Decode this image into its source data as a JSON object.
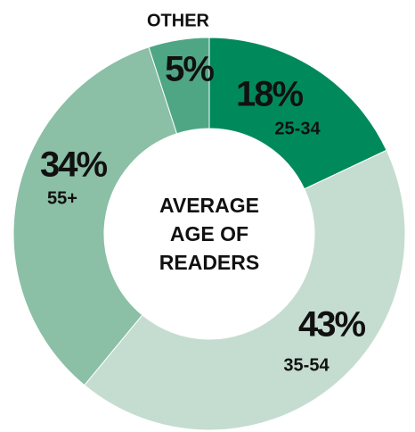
{
  "chart_data": {
    "type": "donut",
    "center_text": [
      "AVERAGE",
      "AGE OF",
      "READERS"
    ],
    "categories": [
      "25-34",
      "35-54",
      "55+",
      "OTHER"
    ],
    "values": [
      18,
      43,
      34,
      5
    ],
    "value_labels": [
      "18%",
      "43%",
      "34%",
      "5%"
    ],
    "colors": [
      "#008a5c",
      "#c5ddd0",
      "#8bbfa6",
      "#4fa685"
    ]
  }
}
